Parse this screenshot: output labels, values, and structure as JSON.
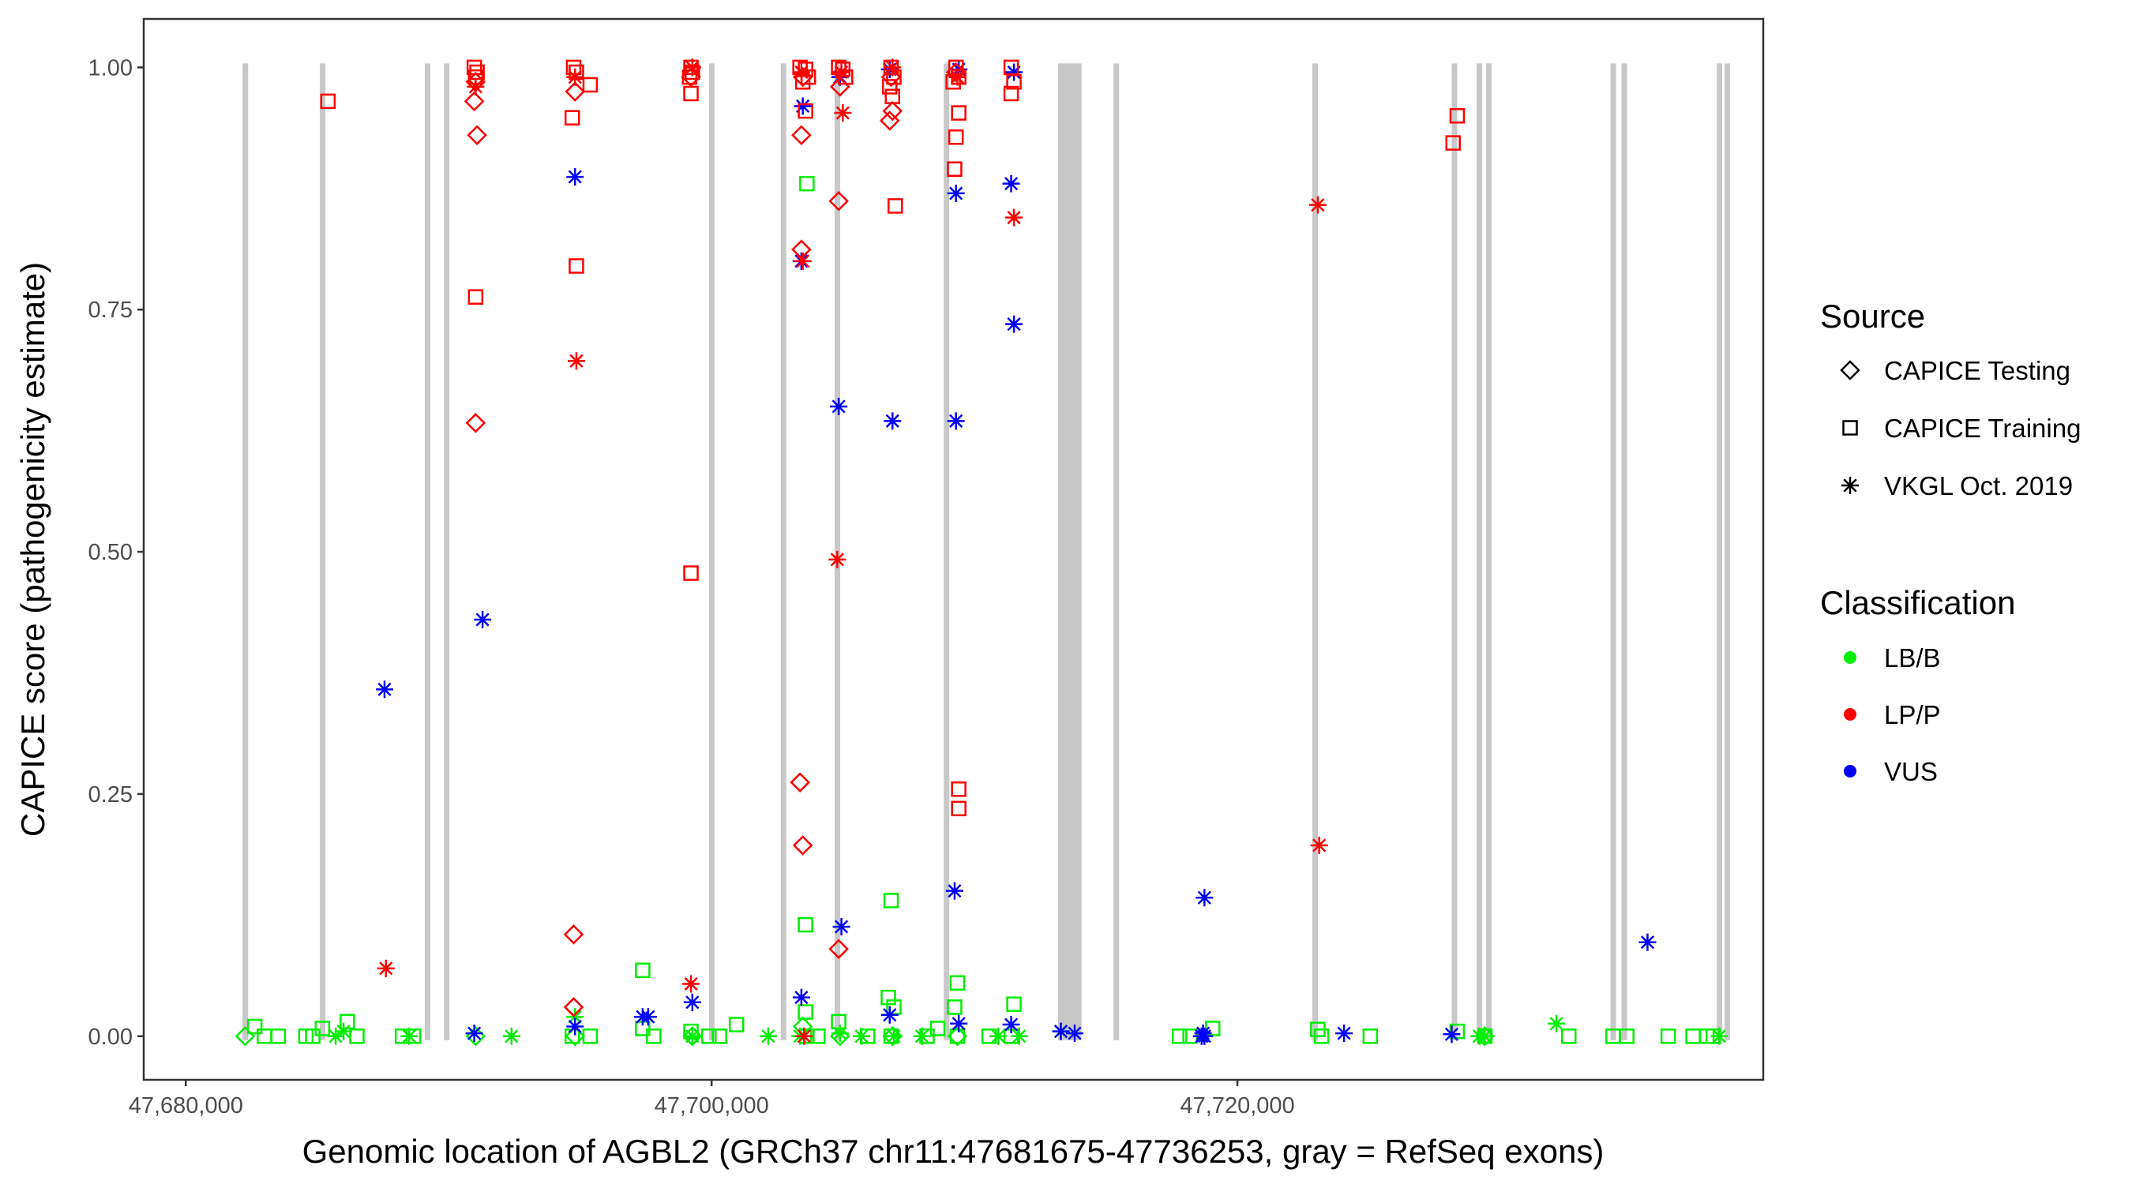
{
  "chart_data": {
    "type": "scatter",
    "xlabel": "Genomic location of AGBL2 (GRCh37 chr11:47681675-47736253, gray = RefSeq exons)",
    "ylabel": "CAPICE score (pathogenicity estimate)",
    "xlim": [
      47678400,
      47740000
    ],
    "ylim": [
      -0.045,
      1.05
    ],
    "x_ticks": [
      47680000,
      47700000,
      47720000
    ],
    "x_tick_labels": [
      "47,680,000",
      "47,700,000",
      "47,720,000"
    ],
    "y_ticks": [
      0,
      0.25,
      0.5,
      0.75,
      1.0
    ],
    "y_tick_labels": [
      "0.00",
      "0.25",
      "0.50",
      "0.75",
      "1.00"
    ],
    "grid": false,
    "legend_placement": "right",
    "exon_color": "#c8c8c8",
    "exons": [
      [
        47682160,
        47682360
      ],
      [
        47685100,
        47685300
      ],
      [
        47689090,
        47689290
      ],
      [
        47689820,
        47690020
      ],
      [
        47699900,
        47700100
      ],
      [
        47702630,
        47702830
      ],
      [
        47704680,
        47704880
      ],
      [
        47708830,
        47709030
      ],
      [
        47713180,
        47714073
      ],
      [
        47715290,
        47715490
      ],
      [
        47722850,
        47723050
      ],
      [
        47728150,
        47728350
      ],
      [
        47729100,
        47729300
      ],
      [
        47729460,
        47729660
      ],
      [
        47734190,
        47734390
      ],
      [
        47734610,
        47734810
      ],
      [
        47738230,
        47738430
      ],
      [
        47738530,
        47738730
      ]
    ],
    "legend": {
      "source_title": "Source",
      "sources": [
        {
          "name": "CAPICE Testing",
          "shape": "diamond"
        },
        {
          "name": "CAPICE Training",
          "shape": "square"
        },
        {
          "name": "VKGL Oct. 2019",
          "shape": "asterisk"
        }
      ],
      "class_title": "Classification",
      "classes": [
        {
          "name": "LB/B",
          "color": "#00ee00"
        },
        {
          "name": "LP/P",
          "color": "#ff0000"
        },
        {
          "name": "VUS",
          "color": "#0000ff"
        }
      ]
    },
    "series": [
      {
        "source": "CAPICE Training",
        "classification": "LP/P",
        "points": [
          [
            47685408,
            0.965
          ],
          [
            47691025,
            0.763
          ],
          [
            47694858,
            0.795
          ],
          [
            47694700,
            0.948
          ],
          [
            47695383,
            0.982
          ],
          [
            47699215,
            0.478
          ],
          [
            47699215,
            0.973
          ],
          [
            47703573,
            0.955
          ],
          [
            47706985,
            0.857
          ],
          [
            47709295,
            0.928
          ],
          [
            47709400,
            0.953
          ],
          [
            47709243,
            0.895
          ],
          [
            47709400,
            0.255
          ],
          [
            47709400,
            0.235
          ],
          [
            47711395,
            0.973
          ],
          [
            47728203,
            0.922
          ],
          [
            47728360,
            0.95
          ],
          [
            47690973,
            1.0
          ],
          [
            47691078,
            0.995
          ],
          [
            47691025,
            0.99
          ],
          [
            47694753,
            1.0
          ],
          [
            47694858,
            0.995
          ],
          [
            47699215,
            1.0
          ],
          [
            47699268,
            0.995
          ],
          [
            47699163,
            0.99
          ],
          [
            47703363,
            1.0
          ],
          [
            47703573,
            0.998
          ],
          [
            47703678,
            0.99
          ],
          [
            47703468,
            0.985
          ],
          [
            47704833,
            1.0
          ],
          [
            47704990,
            0.998
          ],
          [
            47705095,
            0.99
          ],
          [
            47706828,
            1.0
          ],
          [
            47706933,
            0.99
          ],
          [
            47706775,
            0.98
          ],
          [
            47706880,
            0.97
          ],
          [
            47709295,
            1.0
          ],
          [
            47709400,
            0.99
          ],
          [
            47709190,
            0.985
          ],
          [
            47711395,
            1.0
          ],
          [
            47711500,
            0.985
          ]
        ]
      },
      {
        "source": "CAPICE Testing",
        "classification": "LP/P",
        "points": [
          [
            47690973,
            0.965
          ],
          [
            47691078,
            0.93
          ],
          [
            47691025,
            0.633
          ],
          [
            47694753,
            0.105
          ],
          [
            47694753,
            0.03
          ],
          [
            47694805,
            0.975
          ],
          [
            47703415,
            0.93
          ],
          [
            47703415,
            0.812
          ],
          [
            47703363,
            0.262
          ],
          [
            47703468,
            0.197
          ],
          [
            47704833,
            0.862
          ],
          [
            47704833,
            0.09
          ],
          [
            47706775,
            0.945
          ],
          [
            47706880,
            0.955
          ],
          [
            47691025,
            0.985
          ],
          [
            47699215,
            0.99
          ],
          [
            47703468,
            0.99
          ],
          [
            47704885,
            0.98
          ],
          [
            47706828,
            0.99
          ],
          [
            47709295,
            0.995
          ]
        ]
      },
      {
        "source": "VKGL Oct. 2019",
        "classification": "LP/P",
        "points": [
          [
            47687613,
            0.07
          ],
          [
            47694858,
            0.697
          ],
          [
            47699215,
            0.054
          ],
          [
            47704780,
            0.492
          ],
          [
            47704990,
            0.953
          ],
          [
            47711500,
            0.845
          ],
          [
            47723058,
            0.858
          ],
          [
            47723110,
            0.197
          ],
          [
            47703468,
            0.8
          ],
          [
            47703520,
            0.0
          ],
          [
            47691025,
            0.98
          ],
          [
            47694805,
            0.99
          ],
          [
            47699268,
            1.0
          ],
          [
            47703415,
            0.995
          ],
          [
            47704938,
            0.995
          ],
          [
            47706880,
            1.0
          ],
          [
            47709348,
            0.99
          ]
        ]
      },
      {
        "source": "VKGL Oct. 2019",
        "classification": "VUS",
        "points": [
          [
            47687560,
            0.358
          ],
          [
            47691288,
            0.43
          ],
          [
            47694805,
            0.887
          ],
          [
            47703468,
            0.96
          ],
          [
            47703415,
            0.8
          ],
          [
            47704833,
            0.65
          ],
          [
            47704938,
            0.113
          ],
          [
            47706880,
            0.635
          ],
          [
            47709295,
            0.635
          ],
          [
            47709295,
            0.87
          ],
          [
            47709243,
            0.15
          ],
          [
            47711395,
            0.88
          ],
          [
            47711500,
            0.735
          ],
          [
            47718745,
            0.143
          ],
          [
            47735598,
            0.097
          ],
          [
            47703415,
            0.04
          ],
          [
            47699268,
            0.035
          ],
          [
            47697588,
            0.02
          ],
          [
            47697378,
            0.02
          ],
          [
            47694805,
            0.01
          ],
          [
            47706775,
            0.022
          ],
          [
            47709400,
            0.013
          ],
          [
            47711395,
            0.012
          ],
          [
            47713810,
            0.003
          ],
          [
            47718693,
            0.003
          ],
          [
            47718745,
            0.0
          ],
          [
            47718640,
            0.0
          ],
          [
            47724055,
            0.003
          ],
          [
            47728150,
            0.002
          ],
          [
            47690973,
            0.003
          ],
          [
            47704885,
            0.99
          ],
          [
            47706775,
            0.998
          ],
          [
            47709400,
            0.998
          ],
          [
            47711500,
            0.995
          ],
          [
            47713285,
            0.005
          ]
        ]
      },
      {
        "source": "CAPICE Training",
        "classification": "LB/B",
        "points": [
          [
            47697378,
            0.068
          ],
          [
            47703625,
            0.88
          ],
          [
            47703573,
            0.115
          ],
          [
            47706828,
            0.14
          ],
          [
            47706723,
            0.04
          ],
          [
            47706933,
            0.03
          ],
          [
            47709348,
            0.055
          ],
          [
            47709243,
            0.03
          ],
          [
            47711500,
            0.033
          ],
          [
            47682625,
            0.01
          ],
          [
            47682993,
            0.0
          ],
          [
            47683518,
            0.0
          ],
          [
            47684568,
            0.0
          ],
          [
            47684830,
            0.0
          ],
          [
            47685198,
            0.008
          ],
          [
            47686143,
            0.015
          ],
          [
            47686510,
            0.0
          ],
          [
            47688243,
            0.0
          ],
          [
            47688663,
            0.0
          ],
          [
            47694700,
            0.0
          ],
          [
            47695383,
            0.0
          ],
          [
            47697378,
            0.008
          ],
          [
            47697798,
            0.0
          ],
          [
            47699215,
            0.005
          ],
          [
            47699898,
            0.0
          ],
          [
            47700300,
            0.0
          ],
          [
            47700948,
            0.012
          ],
          [
            47703573,
            0.025
          ],
          [
            47703625,
            0.0
          ],
          [
            47704045,
            0.0
          ],
          [
            47704833,
            0.015
          ],
          [
            47705935,
            0.0
          ],
          [
            47706828,
            0.0
          ],
          [
            47708193,
            0.0
          ],
          [
            47708600,
            0.008
          ],
          [
            47709348,
            0.0
          ],
          [
            47710555,
            0.0
          ],
          [
            47711395,
            0.0
          ],
          [
            47717800,
            0.0
          ],
          [
            47718200,
            0.0
          ],
          [
            47719060,
            0.008
          ],
          [
            47723058,
            0.007
          ],
          [
            47723200,
            0.0
          ],
          [
            47725053,
            0.0
          ],
          [
            47728360,
            0.005
          ],
          [
            47729410,
            0.0
          ],
          [
            47732605,
            0.0
          ],
          [
            47734285,
            0.0
          ],
          [
            47734810,
            0.0
          ],
          [
            47736385,
            0.0
          ],
          [
            47737330,
            0.0
          ],
          [
            47737855,
            0.0
          ],
          [
            47738100,
            0.0
          ]
        ]
      },
      {
        "source": "CAPICE Testing",
        "classification": "LB/B",
        "points": [
          [
            47682258,
            0.0
          ],
          [
            47691025,
            0.0
          ],
          [
            47694805,
            0.0
          ],
          [
            47699268,
            0.0
          ],
          [
            47703468,
            0.01
          ],
          [
            47704885,
            0.0
          ],
          [
            47706880,
            0.0
          ],
          [
            47709348,
            0.0
          ],
          [
            47729410,
            0.0
          ]
        ]
      },
      {
        "source": "VKGL Oct. 2019",
        "classification": "LB/B",
        "points": [
          [
            47686000,
            0.005
          ],
          [
            47685700,
            0.0
          ],
          [
            47688500,
            0.0
          ],
          [
            47692390,
            0.0
          ],
          [
            47694805,
            0.02
          ],
          [
            47699268,
            0.0
          ],
          [
            47702155,
            0.0
          ],
          [
            47703363,
            0.0
          ],
          [
            47704885,
            0.003
          ],
          [
            47705700,
            0.0
          ],
          [
            47706933,
            0.0
          ],
          [
            47708000,
            0.0
          ],
          [
            47710900,
            0.0
          ],
          [
            47711700,
            0.0
          ],
          [
            47713285,
            0.005
          ],
          [
            47729410,
            0.0
          ],
          [
            47729200,
            0.0
          ],
          [
            47732133,
            0.013
          ],
          [
            47738328,
            0.0
          ]
        ]
      }
    ]
  }
}
